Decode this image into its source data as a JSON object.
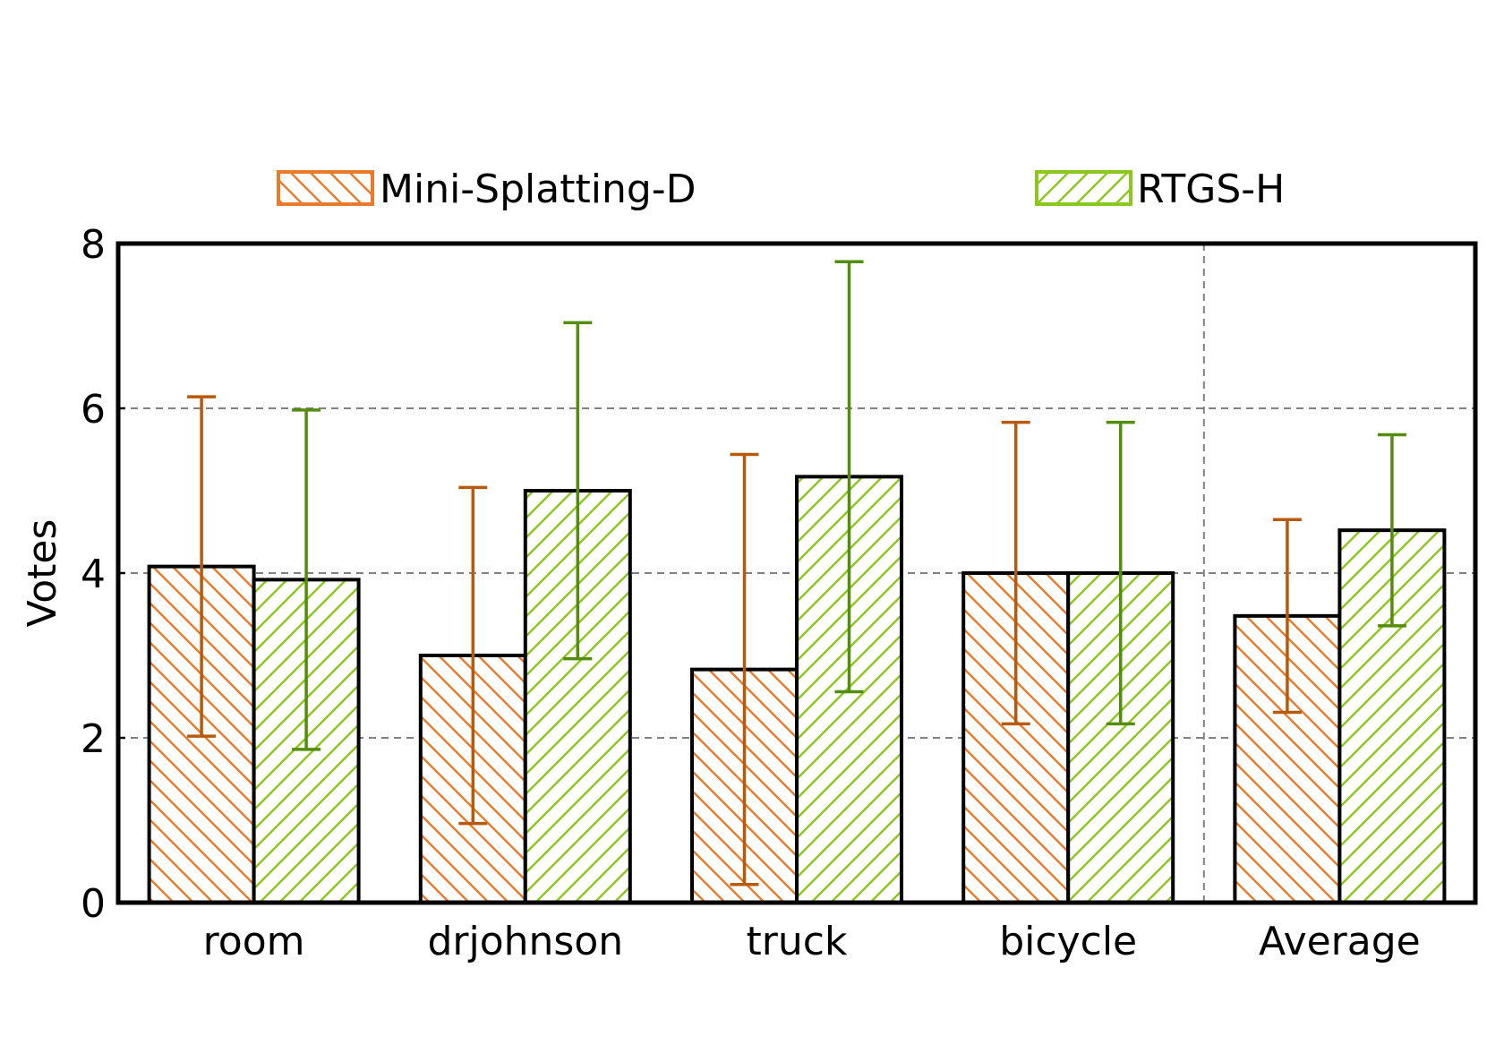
{
  "chart_data": {
    "type": "bar",
    "title": "",
    "xlabel": "",
    "ylabel": "Votes",
    "ylim": [
      0,
      8
    ],
    "yticks": [
      0,
      2,
      4,
      6,
      8
    ],
    "grid": true,
    "legend_position": "top",
    "categories": [
      "room",
      "drjohnson",
      "truck",
      "bicycle",
      "Average"
    ],
    "series": [
      {
        "name": "Mini-Splatting-D",
        "values": [
          4.08,
          3.0,
          2.83,
          4.0,
          3.48
        ],
        "error_low": [
          2.02,
          0.96,
          0.22,
          2.17,
          2.31
        ],
        "error_high": [
          6.14,
          5.04,
          5.44,
          5.83,
          4.65
        ],
        "hatch": "backslash",
        "hatch_color": "#E87B2C",
        "error_color": "#B85A0C"
      },
      {
        "name": "RTGS-H",
        "values": [
          3.92,
          5.0,
          5.17,
          4.0,
          4.52
        ],
        "error_low": [
          1.86,
          2.96,
          2.56,
          2.17,
          3.36
        ],
        "error_high": [
          5.98,
          7.04,
          7.78,
          5.83,
          5.68
        ],
        "hatch": "slash",
        "hatch_color": "#8CC71E",
        "error_color": "#548C0E"
      }
    ]
  }
}
